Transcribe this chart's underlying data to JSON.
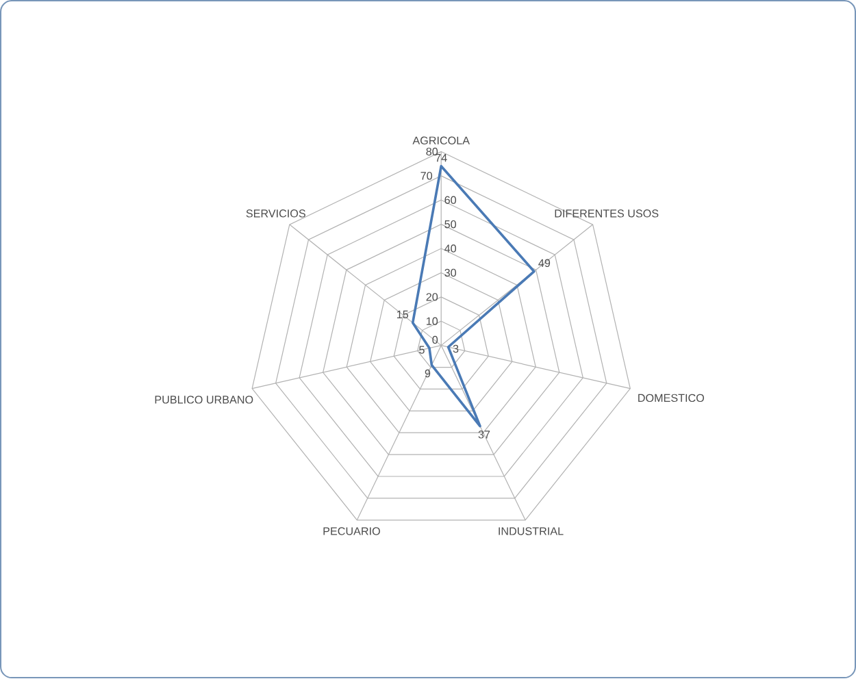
{
  "chart_data": {
    "type": "radar",
    "categories": [
      "AGRICOLA",
      "DIFERENTES USOS",
      "DOMESTICO",
      "INDUSTRIAL",
      "PECUARIO",
      "PUBLICO URBANO",
      "SERVICIOS"
    ],
    "series": [
      {
        "color": "#4a7ab5",
        "values": [
          74,
          49,
          3,
          37,
          9,
          5,
          15
        ],
        "value_labels": [
          "74",
          "49",
          "3",
          "37",
          "9",
          "5",
          "15"
        ]
      }
    ],
    "ylim": [
      0,
      80
    ],
    "yticks": [
      0,
      10,
      20,
      30,
      40,
      50,
      60,
      70,
      80
    ],
    "grid": true
  }
}
